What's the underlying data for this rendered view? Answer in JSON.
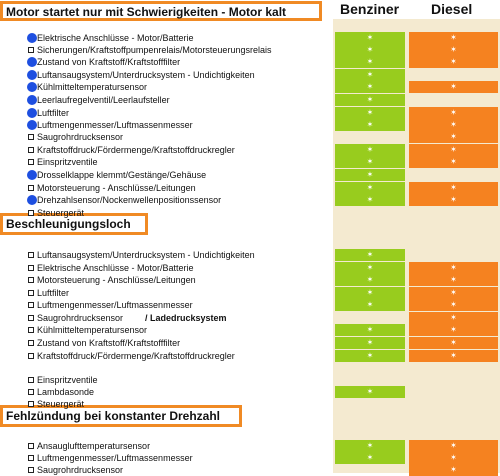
{
  "header": {
    "benzin": "Benziner",
    "diesel": "Diesel"
  },
  "sections": [
    {
      "title": "Motor startet nur mit Schwierigkeiten - Motor kalt"
    },
    {
      "title": "Beschleunigungsloch"
    },
    {
      "title": "Fehlzündung bei konstanter Drehzahl"
    }
  ],
  "rows": [
    {
      "label": "Elektrische Anschlüsse - Motor/Batterie",
      "dot": true,
      "b": true,
      "d": true
    },
    {
      "label": "Sicherungen/Kraftstoffpumpenrelais/Motorsteuerungsrelais",
      "dot": false,
      "b": true,
      "d": true
    },
    {
      "label": "Zustand von Kraftstoff/Kraftstofffilter",
      "dot": true,
      "b": true,
      "d": true
    },
    {
      "label": "Luftansaugsystem/Unterdrucksystem - Undichtigkeiten",
      "dot": true,
      "b": true,
      "d": false
    },
    {
      "label": "Kühlmitteltemperatursensor",
      "dot": true,
      "b": true,
      "d": true
    },
    {
      "label": "Leerlaufregelventil/Leerlaufsteller",
      "dot": true,
      "b": true,
      "d": false
    },
    {
      "label": "Luftfilter",
      "dot": true,
      "b": true,
      "d": true
    },
    {
      "label": "Luftmengenmesser/Luftmassenmesser",
      "dot": true,
      "b": true,
      "d": true
    },
    {
      "label": "Saugrohrdrucksensor",
      "dot": false,
      "b": false,
      "d": true
    },
    {
      "label": "Kraftstoffdruck/Fördermenge/Kraftstoffdruckregler",
      "dot": false,
      "b": true,
      "d": true
    },
    {
      "label": "Einspritzventile",
      "dot": false,
      "b": true,
      "d": true
    },
    {
      "label": "Drosselklappe klemmt/Gestänge/Gehäuse",
      "dot": true,
      "b": true,
      "d": false
    },
    {
      "label": "Motorsteuerung - Anschlüsse/Leitungen",
      "dot": false,
      "b": true,
      "d": true
    },
    {
      "label": "Drehzahlsensor/Nockenwellenpositionssensor",
      "dot": true,
      "b": true,
      "d": true
    },
    {
      "label": "Steuergerät",
      "dot": false,
      "b": false,
      "d": false
    },
    {
      "label": "Luftansaugsystem/Unterdrucksystem - Undichtigkeiten",
      "dot": false,
      "b": true,
      "d": false
    },
    {
      "label": "Elektrische Anschlüsse - Motor/Batterie",
      "dot": false,
      "b": true,
      "d": true
    },
    {
      "label": "Motorsteuerung - Anschlüsse/Leitungen",
      "dot": false,
      "b": true,
      "d": true
    },
    {
      "label": "Luftfilter",
      "dot": false,
      "b": true,
      "d": true
    },
    {
      "label": "Luftmengenmesser/Luftmassenmesser",
      "dot": false,
      "b": true,
      "d": true
    },
    {
      "label": "Saugrohrdrucksensor",
      "extra": "/ Ladedrucksystem",
      "dot": false,
      "b": false,
      "d": true
    },
    {
      "label": "Kühlmitteltemperatursensor",
      "dot": false,
      "b": true,
      "d": true
    },
    {
      "label": "Zustand von Kraftstoff/Kraftstofffilter",
      "dot": false,
      "b": true,
      "d": true
    },
    {
      "label": "Kraftstoffdruck/Fördermenge/Kraftstoffdruckregler",
      "dot": false,
      "b": true,
      "d": true
    },
    {
      "label": "Einspritzventile",
      "dot": false,
      "b": false,
      "d": false
    },
    {
      "label": "Lambdasonde",
      "dot": false,
      "b": true,
      "d": false
    },
    {
      "label": "Steuergerät",
      "dot": false,
      "b": false,
      "d": false
    },
    {
      "label": "Ansauglufttemperatursensor",
      "dot": false,
      "b": true,
      "d": true
    },
    {
      "label": "Luftmengenmesser/Luftmassenmesser",
      "dot": false,
      "b": true,
      "d": true
    },
    {
      "label": "Saugrohrdrucksensor",
      "dot": false,
      "b": false,
      "d": true
    }
  ],
  "marker": "✶"
}
